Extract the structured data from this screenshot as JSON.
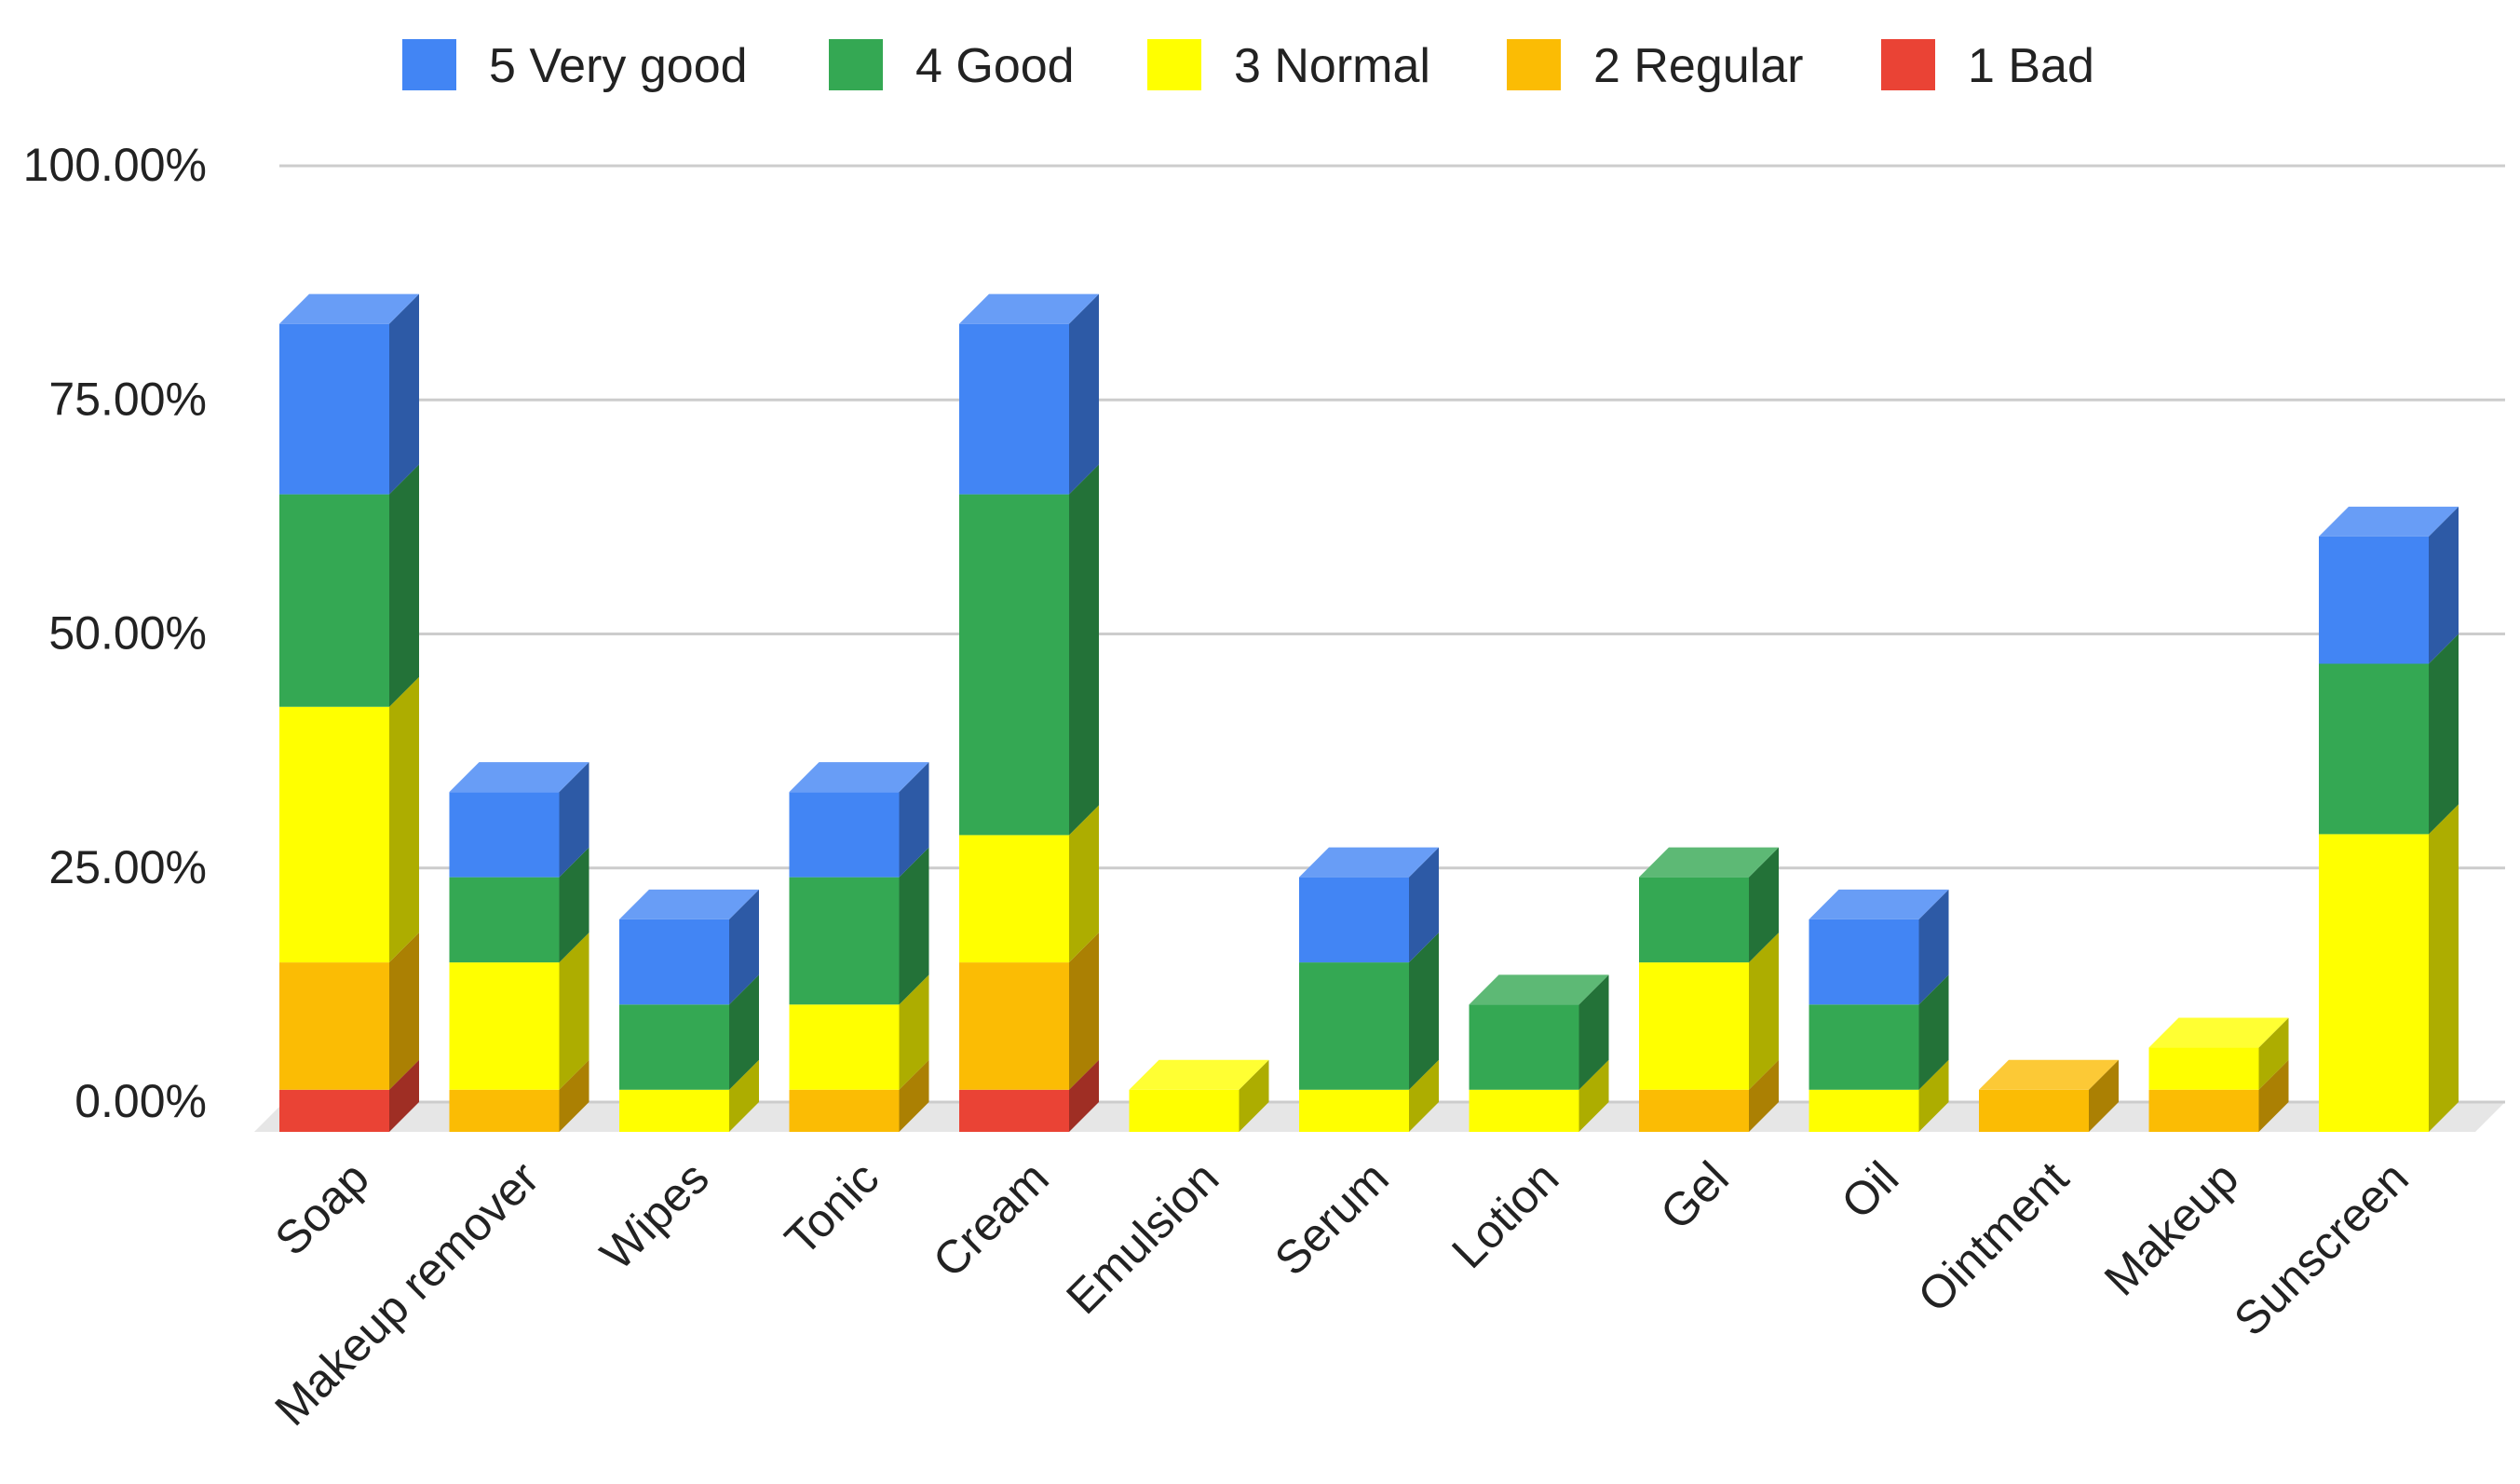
{
  "chart_data": {
    "type": "bar",
    "stacked": true,
    "style": "3d",
    "title": "",
    "xlabel": "",
    "ylabel": "",
    "ylim": [
      0,
      100
    ],
    "y_ticks": [
      "0.00%",
      "25.00%",
      "50.00%",
      "75.00%",
      "100.00%"
    ],
    "grid": true,
    "legend_position": "top",
    "categories": [
      "Soap",
      "Makeup remover",
      "Wipes",
      "Tonic",
      "Cream",
      "Emulsion",
      "Serum",
      "Lotion",
      "Gel",
      "Oil",
      "Ointment",
      "Makeup",
      "Sunscreen"
    ],
    "series": [
      {
        "name": "1 Bad",
        "color": "#ea4335",
        "values": [
          4.5,
          0,
          0,
          0,
          4.5,
          0,
          0,
          0,
          0,
          0,
          0,
          0,
          0
        ]
      },
      {
        "name": "2 Regular",
        "color": "#fbbc04",
        "values": [
          13.6,
          4.5,
          0,
          4.5,
          13.6,
          0,
          0,
          0,
          4.5,
          0,
          4.5,
          4.5,
          0
        ]
      },
      {
        "name": "3 Normal",
        "color": "#ffff00",
        "values": [
          27.3,
          13.6,
          4.5,
          9.1,
          13.6,
          4.5,
          4.5,
          4.5,
          13.6,
          4.5,
          0,
          4.5,
          31.8
        ]
      },
      {
        "name": "4 Good",
        "color": "#34a853",
        "values": [
          22.7,
          9.1,
          9.1,
          13.6,
          36.4,
          0,
          13.6,
          9.1,
          9.1,
          9.1,
          0,
          0,
          18.2
        ]
      },
      {
        "name": "5 Very good",
        "color": "#4285f4",
        "values": [
          18.2,
          9.1,
          9.1,
          9.1,
          18.2,
          0,
          9.1,
          0,
          0,
          9.1,
          0,
          0,
          13.6
        ]
      }
    ],
    "legend_order": [
      "5 Very good",
      "4 Good",
      "3 Normal",
      "2 Regular",
      "1 Bad"
    ]
  }
}
